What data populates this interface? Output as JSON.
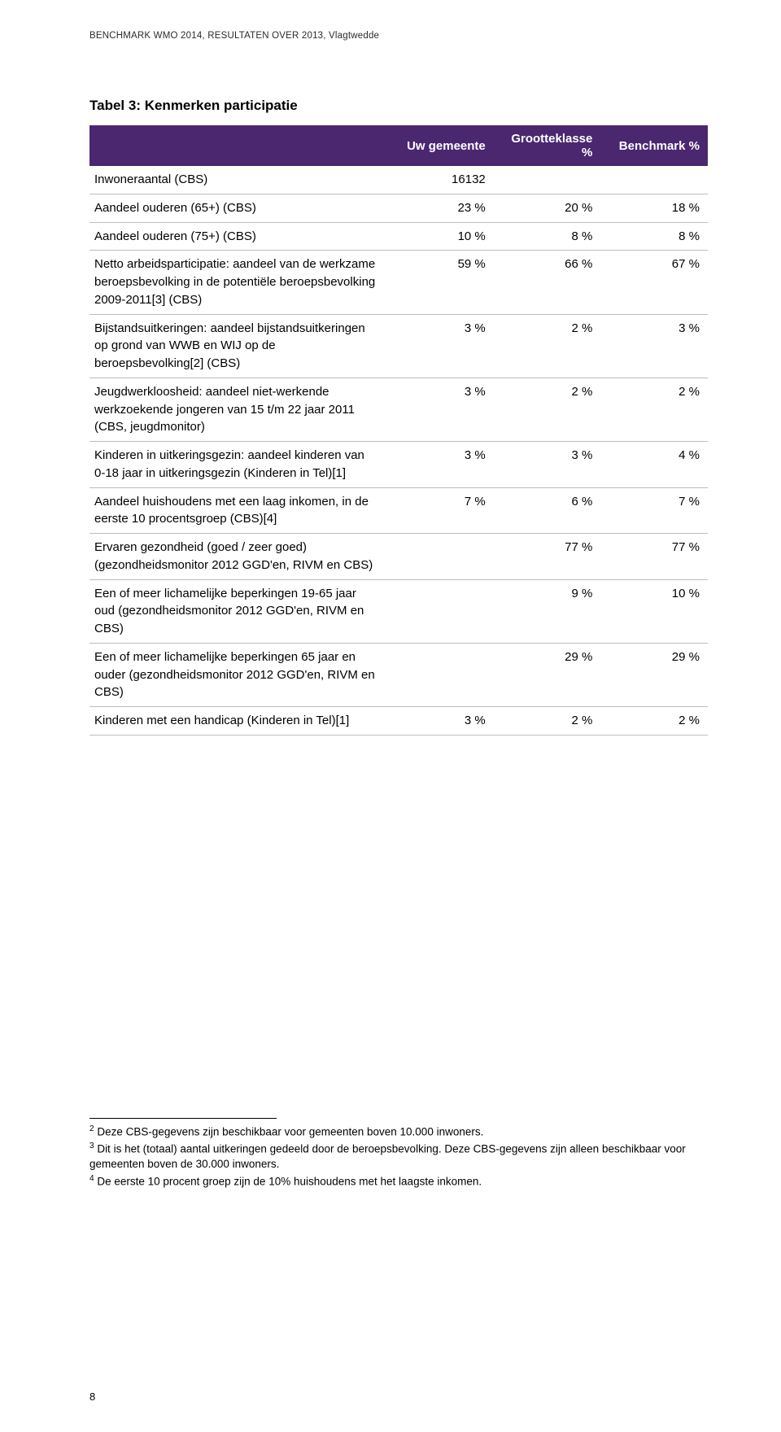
{
  "header_line": "BENCHMARK WMO 2014, RESULTATEN OVER 2013, Vlagtwedde",
  "table_title": "Tabel 3: Kenmerken participatie",
  "table": {
    "columns": [
      "",
      "Uw gemeente",
      "Grootteklasse %",
      "Benchmark %"
    ],
    "col_widths_pct": [
      48,
      17.3,
      17.3,
      17.3
    ],
    "header_bg": "#4b2770",
    "header_fg": "#ffffff",
    "row_border_color": "#bdbdbd",
    "font_size_pt": 11,
    "rows": [
      {
        "label": "Inwoneraantal (CBS)",
        "v1": "16132",
        "v2": "",
        "v3": ""
      },
      {
        "label": "Aandeel ouderen (65+) (CBS)",
        "v1": "23 %",
        "v2": "20 %",
        "v3": "18 %"
      },
      {
        "label": "Aandeel ouderen (75+) (CBS)",
        "v1": "10 %",
        "v2": "8 %",
        "v3": "8 %"
      },
      {
        "label": "Netto arbeidsparticipatie: aandeel van de werkzame beroepsbevolking in de potentiële beroepsbevolking 2009-2011[3] (CBS)",
        "v1": "59 %",
        "v2": "66 %",
        "v3": "67 %"
      },
      {
        "label": "Bijstandsuitkeringen: aandeel bijstandsuitkeringen op grond van WWB en WIJ op de beroepsbevolking[2] (CBS)",
        "v1": "3 %",
        "v2": "2 %",
        "v3": "3 %"
      },
      {
        "label": "Jeugdwerkloosheid: aandeel niet-werkende werkzoekende jongeren van 15 t/m 22 jaar 2011 (CBS, jeugdmonitor)",
        "v1": "3 %",
        "v2": "2 %",
        "v3": "2 %"
      },
      {
        "label": "Kinderen in uitkeringsgezin: aandeel kinderen van 0-18 jaar in uitkeringsgezin (Kinderen in Tel)[1]",
        "v1": "3 %",
        "v2": "3 %",
        "v3": "4 %"
      },
      {
        "label": "Aandeel huishoudens met een laag inkomen, in de eerste 10 procentsgroep (CBS)[4]",
        "v1": "7 %",
        "v2": "6 %",
        "v3": "7 %"
      },
      {
        "label": "Ervaren gezondheid (goed / zeer goed) (gezondheidsmonitor 2012 GGD'en, RIVM en CBS)",
        "v1": "",
        "v2": "77 %",
        "v3": "77 %"
      },
      {
        "label": "Een of meer lichamelijke beperkingen 19-65 jaar oud (gezondheidsmonitor 2012 GGD'en, RIVM en CBS)",
        "v1": "",
        "v2": "9 %",
        "v3": "10 %"
      },
      {
        "label": "Een of meer lichamelijke beperkingen 65 jaar en ouder (gezondheidsmonitor 2012 GGD'en, RIVM en CBS)",
        "v1": "",
        "v2": "29 %",
        "v3": "29 %"
      },
      {
        "label": "Kinderen met een handicap (Kinderen in Tel)[1]",
        "v1": "3 %",
        "v2": "2 %",
        "v3": "2 %"
      }
    ]
  },
  "footnotes": [
    {
      "num": "2",
      "text": "Deze CBS-gegevens zijn beschikbaar voor gemeenten boven 10.000 inwoners."
    },
    {
      "num": "3",
      "text": "Dit is het (totaal) aantal uitkeringen gedeeld door de beroepsbevolking. Deze CBS-gegevens zijn alleen beschikbaar voor gemeenten boven de 30.000 inwoners."
    },
    {
      "num": "4",
      "text": "De eerste 10 procent groep zijn de 10% huishoudens met het laagste inkomen."
    }
  ],
  "page_number": "8",
  "colors": {
    "page_bg": "#ffffff",
    "text": "#000000",
    "header_text": "#2b2b2b"
  }
}
